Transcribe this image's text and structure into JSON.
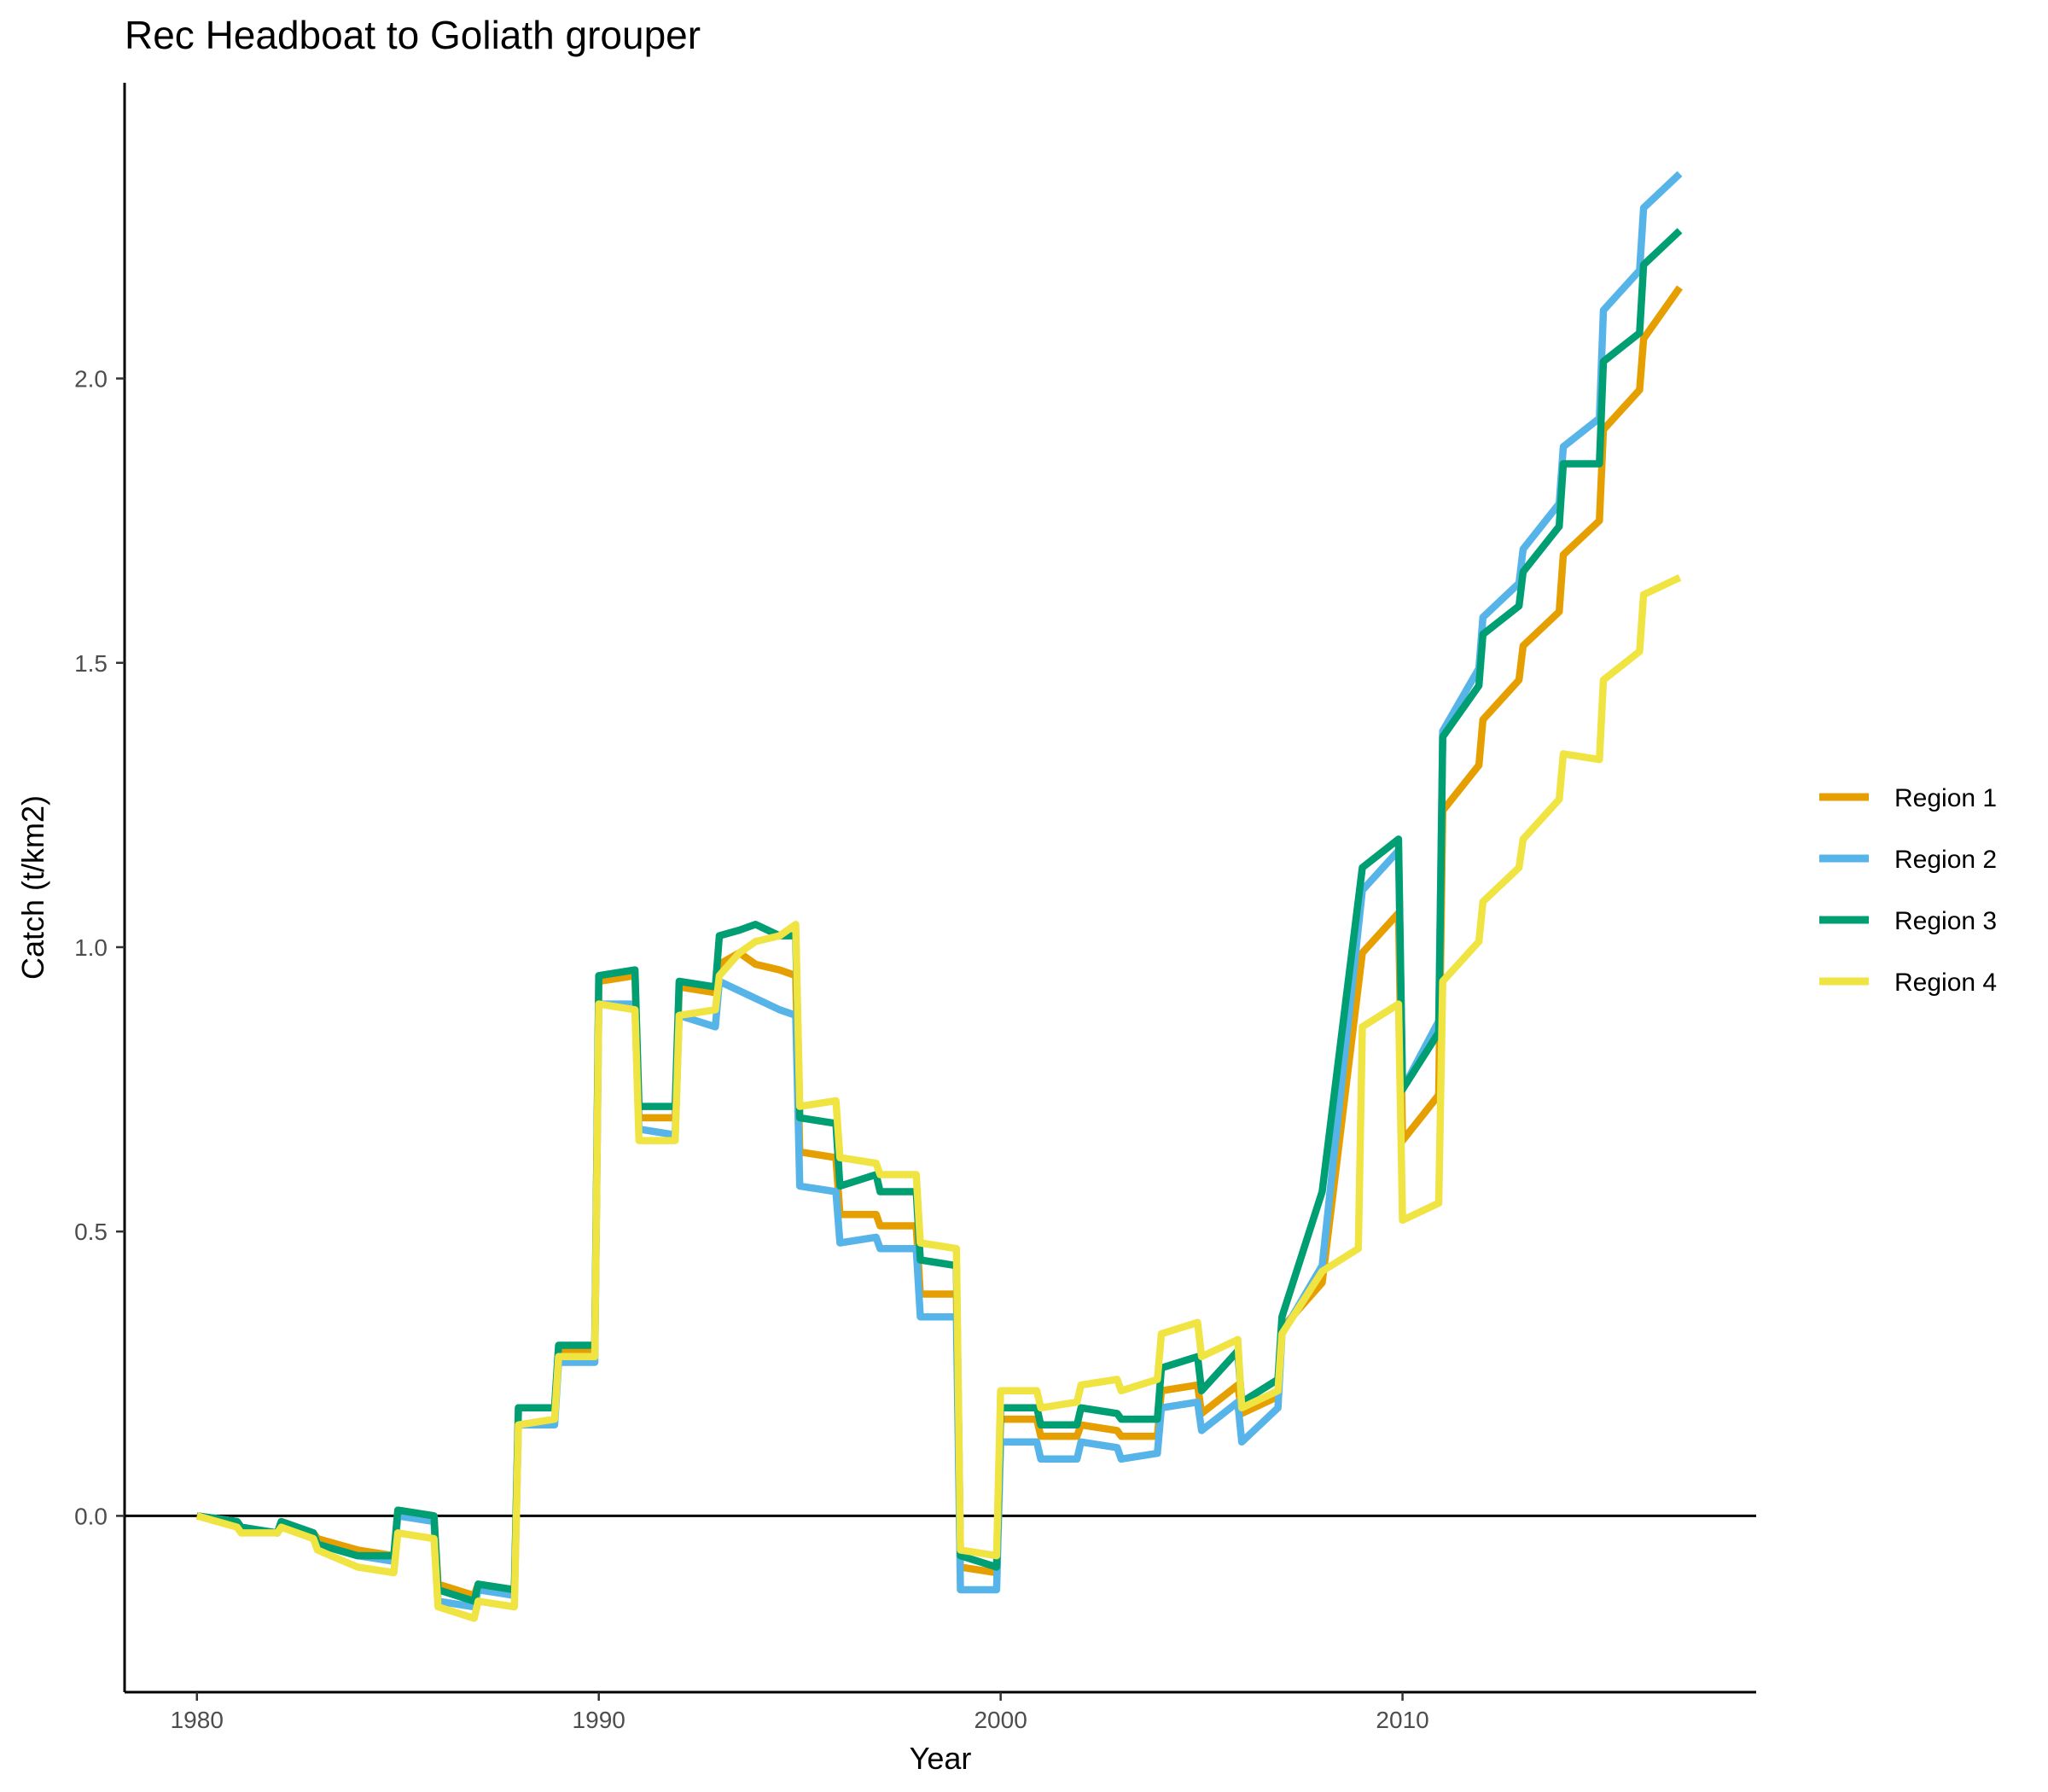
{
  "chart_data": {
    "type": "line",
    "title": "Rec Headboat to Goliath grouper",
    "xlabel": "Year",
    "ylabel": "Catch (t/km2)",
    "xlim": [
      1978.2,
      2018.8
    ],
    "ylim": [
      -0.31,
      2.52
    ],
    "xticks": [
      1980,
      1990,
      2000,
      2010
    ],
    "xtick_labels": [
      "1980",
      "1990",
      "2000",
      "2010"
    ],
    "yticks": [
      0.0,
      0.5,
      1.0,
      1.5,
      2.0
    ],
    "ytick_labels": [
      "0.0",
      "0.5",
      "1.0",
      "1.5",
      "2.0"
    ],
    "hline": 0,
    "grid": false,
    "legend_position": "right",
    "series": [
      {
        "name": "Region 1",
        "color": "#E69F00",
        "points": [
          [
            1980.0,
            0.0
          ],
          [
            1981.0,
            -0.01
          ],
          [
            1981.1,
            -0.02
          ],
          [
            1982.0,
            -0.03
          ],
          [
            1982.1,
            -0.01
          ],
          [
            1982.9,
            -0.03
          ],
          [
            1983.0,
            -0.04
          ],
          [
            1984.0,
            -0.06
          ],
          [
            1984.9,
            -0.07
          ],
          [
            1985.0,
            0.01
          ],
          [
            1985.9,
            0.0
          ],
          [
            1986.0,
            -0.12
          ],
          [
            1986.9,
            -0.14
          ],
          [
            1987.0,
            -0.12
          ],
          [
            1987.9,
            -0.13
          ],
          [
            1988.0,
            0.19
          ],
          [
            1988.9,
            0.19
          ],
          [
            1989.0,
            0.29
          ],
          [
            1989.9,
            0.29
          ],
          [
            1990.0,
            0.94
          ],
          [
            1990.9,
            0.95
          ],
          [
            1991.0,
            0.7
          ],
          [
            1991.9,
            0.7
          ],
          [
            1992.0,
            0.93
          ],
          [
            1992.9,
            0.92
          ],
          [
            1993.0,
            0.97
          ],
          [
            1993.5,
            0.99
          ],
          [
            1993.9,
            0.97
          ],
          [
            1994.5,
            0.96
          ],
          [
            1994.9,
            0.95
          ],
          [
            1995.0,
            0.64
          ],
          [
            1995.9,
            0.63
          ],
          [
            1996.0,
            0.53
          ],
          [
            1996.9,
            0.53
          ],
          [
            1997.0,
            0.51
          ],
          [
            1997.9,
            0.51
          ],
          [
            1998.0,
            0.39
          ],
          [
            1998.9,
            0.39
          ],
          [
            1999.0,
            -0.09
          ],
          [
            1999.9,
            -0.1
          ],
          [
            2000.0,
            0.17
          ],
          [
            2000.9,
            0.17
          ],
          [
            2001.0,
            0.14
          ],
          [
            2001.9,
            0.14
          ],
          [
            2002.0,
            0.16
          ],
          [
            2002.9,
            0.15
          ],
          [
            2003.0,
            0.14
          ],
          [
            2003.9,
            0.14
          ],
          [
            2004.0,
            0.22
          ],
          [
            2004.9,
            0.23
          ],
          [
            2005.0,
            0.18
          ],
          [
            2005.9,
            0.23
          ],
          [
            2006.0,
            0.18
          ],
          [
            2006.9,
            0.21
          ],
          [
            2007.0,
            0.33
          ],
          [
            2008.0,
            0.41
          ],
          [
            2009.0,
            0.99
          ],
          [
            2009.9,
            1.06
          ],
          [
            2010.0,
            0.66
          ],
          [
            2010.9,
            0.74
          ],
          [
            2011.0,
            1.24
          ],
          [
            2011.9,
            1.32
          ],
          [
            2012.0,
            1.4
          ],
          [
            2012.9,
            1.47
          ],
          [
            2013.0,
            1.53
          ],
          [
            2013.9,
            1.59
          ],
          [
            2014.0,
            1.69
          ],
          [
            2014.9,
            1.75
          ],
          [
            2015.0,
            1.91
          ],
          [
            2015.9,
            1.98
          ],
          [
            2016.0,
            2.07
          ],
          [
            2016.9,
            2.16
          ]
        ]
      },
      {
        "name": "Region 2",
        "color": "#56B4E9",
        "points": [
          [
            1980.0,
            0.0
          ],
          [
            1981.0,
            -0.01
          ],
          [
            1981.1,
            -0.02
          ],
          [
            1982.0,
            -0.03
          ],
          [
            1982.1,
            -0.01
          ],
          [
            1982.9,
            -0.03
          ],
          [
            1983.0,
            -0.05
          ],
          [
            1984.0,
            -0.07
          ],
          [
            1984.9,
            -0.08
          ],
          [
            1985.0,
            0.0
          ],
          [
            1985.9,
            -0.01
          ],
          [
            1986.0,
            -0.15
          ],
          [
            1986.9,
            -0.16
          ],
          [
            1987.0,
            -0.13
          ],
          [
            1987.9,
            -0.14
          ],
          [
            1988.0,
            0.16
          ],
          [
            1988.9,
            0.16
          ],
          [
            1989.0,
            0.27
          ],
          [
            1989.9,
            0.27
          ],
          [
            1990.0,
            0.9
          ],
          [
            1990.9,
            0.9
          ],
          [
            1991.0,
            0.68
          ],
          [
            1991.9,
            0.67
          ],
          [
            1992.0,
            0.88
          ],
          [
            1992.9,
            0.86
          ],
          [
            1993.0,
            0.94
          ],
          [
            1993.9,
            0.91
          ],
          [
            1994.5,
            0.89
          ],
          [
            1994.9,
            0.88
          ],
          [
            1995.0,
            0.58
          ],
          [
            1995.9,
            0.57
          ],
          [
            1996.0,
            0.48
          ],
          [
            1996.9,
            0.49
          ],
          [
            1997.0,
            0.47
          ],
          [
            1997.9,
            0.47
          ],
          [
            1998.0,
            0.35
          ],
          [
            1998.9,
            0.35
          ],
          [
            1999.0,
            -0.13
          ],
          [
            1999.9,
            -0.13
          ],
          [
            2000.0,
            0.13
          ],
          [
            2000.9,
            0.13
          ],
          [
            2001.0,
            0.1
          ],
          [
            2001.9,
            0.1
          ],
          [
            2002.0,
            0.13
          ],
          [
            2002.9,
            0.12
          ],
          [
            2003.0,
            0.1
          ],
          [
            2003.9,
            0.11
          ],
          [
            2004.0,
            0.19
          ],
          [
            2004.9,
            0.2
          ],
          [
            2005.0,
            0.15
          ],
          [
            2005.9,
            0.2
          ],
          [
            2006.0,
            0.13
          ],
          [
            2006.9,
            0.19
          ],
          [
            2007.0,
            0.32
          ],
          [
            2008.0,
            0.44
          ],
          [
            2009.0,
            1.1
          ],
          [
            2009.9,
            1.17
          ],
          [
            2010.0,
            0.75
          ],
          [
            2010.9,
            0.87
          ],
          [
            2011.0,
            1.38
          ],
          [
            2011.9,
            1.49
          ],
          [
            2012.0,
            1.58
          ],
          [
            2012.9,
            1.64
          ],
          [
            2013.0,
            1.7
          ],
          [
            2013.9,
            1.78
          ],
          [
            2014.0,
            1.88
          ],
          [
            2014.9,
            1.93
          ],
          [
            2015.0,
            2.12
          ],
          [
            2015.9,
            2.19
          ],
          [
            2016.0,
            2.3
          ],
          [
            2016.9,
            2.36
          ]
        ]
      },
      {
        "name": "Region 3",
        "color": "#009E73",
        "points": [
          [
            1980.0,
            0.0
          ],
          [
            1981.0,
            -0.01
          ],
          [
            1981.1,
            -0.02
          ],
          [
            1982.0,
            -0.03
          ],
          [
            1982.1,
            -0.01
          ],
          [
            1982.9,
            -0.03
          ],
          [
            1983.0,
            -0.05
          ],
          [
            1984.0,
            -0.07
          ],
          [
            1984.9,
            -0.07
          ],
          [
            1985.0,
            0.01
          ],
          [
            1985.9,
            0.0
          ],
          [
            1986.0,
            -0.13
          ],
          [
            1986.9,
            -0.15
          ],
          [
            1987.0,
            -0.12
          ],
          [
            1987.9,
            -0.13
          ],
          [
            1988.0,
            0.19
          ],
          [
            1988.9,
            0.19
          ],
          [
            1989.0,
            0.3
          ],
          [
            1989.9,
            0.3
          ],
          [
            1990.0,
            0.95
          ],
          [
            1990.9,
            0.96
          ],
          [
            1991.0,
            0.72
          ],
          [
            1991.9,
            0.72
          ],
          [
            1992.0,
            0.94
          ],
          [
            1992.9,
            0.93
          ],
          [
            1993.0,
            1.02
          ],
          [
            1993.5,
            1.03
          ],
          [
            1993.9,
            1.04
          ],
          [
            1994.5,
            1.02
          ],
          [
            1994.9,
            1.02
          ],
          [
            1995.0,
            0.7
          ],
          [
            1995.9,
            0.69
          ],
          [
            1996.0,
            0.58
          ],
          [
            1996.9,
            0.6
          ],
          [
            1997.0,
            0.57
          ],
          [
            1997.9,
            0.57
          ],
          [
            1998.0,
            0.45
          ],
          [
            1998.9,
            0.44
          ],
          [
            1999.0,
            -0.07
          ],
          [
            1999.9,
            -0.09
          ],
          [
            2000.0,
            0.19
          ],
          [
            2000.9,
            0.19
          ],
          [
            2001.0,
            0.16
          ],
          [
            2001.9,
            0.16
          ],
          [
            2002.0,
            0.19
          ],
          [
            2002.9,
            0.18
          ],
          [
            2003.0,
            0.17
          ],
          [
            2003.9,
            0.17
          ],
          [
            2004.0,
            0.26
          ],
          [
            2004.9,
            0.28
          ],
          [
            2005.0,
            0.22
          ],
          [
            2005.9,
            0.29
          ],
          [
            2006.0,
            0.2
          ],
          [
            2006.9,
            0.24
          ],
          [
            2007.0,
            0.35
          ],
          [
            2008.0,
            0.57
          ],
          [
            2009.0,
            1.14
          ],
          [
            2009.9,
            1.19
          ],
          [
            2010.0,
            0.75
          ],
          [
            2010.9,
            0.85
          ],
          [
            2011.0,
            1.37
          ],
          [
            2011.9,
            1.46
          ],
          [
            2012.0,
            1.55
          ],
          [
            2012.9,
            1.6
          ],
          [
            2013.0,
            1.66
          ],
          [
            2013.9,
            1.74
          ],
          [
            2014.0,
            1.85
          ],
          [
            2014.9,
            1.85
          ],
          [
            2015.0,
            2.03
          ],
          [
            2015.9,
            2.08
          ],
          [
            2016.0,
            2.2
          ],
          [
            2016.9,
            2.26
          ]
        ]
      },
      {
        "name": "Region 4",
        "color": "#F0E442",
        "points": [
          [
            1980.0,
            0.0
          ],
          [
            1981.0,
            -0.02
          ],
          [
            1981.1,
            -0.03
          ],
          [
            1982.0,
            -0.03
          ],
          [
            1982.1,
            -0.02
          ],
          [
            1982.9,
            -0.04
          ],
          [
            1983.0,
            -0.06
          ],
          [
            1984.0,
            -0.09
          ],
          [
            1984.9,
            -0.1
          ],
          [
            1985.0,
            -0.03
          ],
          [
            1985.9,
            -0.04
          ],
          [
            1986.0,
            -0.16
          ],
          [
            1986.9,
            -0.18
          ],
          [
            1987.0,
            -0.15
          ],
          [
            1987.9,
            -0.16
          ],
          [
            1988.0,
            0.16
          ],
          [
            1988.9,
            0.17
          ],
          [
            1989.0,
            0.28
          ],
          [
            1989.9,
            0.28
          ],
          [
            1990.0,
            0.9
          ],
          [
            1990.9,
            0.89
          ],
          [
            1991.0,
            0.66
          ],
          [
            1991.9,
            0.66
          ],
          [
            1992.0,
            0.88
          ],
          [
            1992.9,
            0.89
          ],
          [
            1993.0,
            0.95
          ],
          [
            1993.5,
            0.99
          ],
          [
            1993.9,
            1.01
          ],
          [
            1994.5,
            1.02
          ],
          [
            1994.9,
            1.04
          ],
          [
            1995.0,
            0.72
          ],
          [
            1995.9,
            0.73
          ],
          [
            1996.0,
            0.63
          ],
          [
            1996.9,
            0.62
          ],
          [
            1997.0,
            0.6
          ],
          [
            1997.9,
            0.6
          ],
          [
            1998.0,
            0.48
          ],
          [
            1998.9,
            0.47
          ],
          [
            1999.0,
            -0.06
          ],
          [
            1999.9,
            -0.07
          ],
          [
            2000.0,
            0.22
          ],
          [
            2000.9,
            0.22
          ],
          [
            2001.0,
            0.19
          ],
          [
            2001.9,
            0.2
          ],
          [
            2002.0,
            0.23
          ],
          [
            2002.9,
            0.24
          ],
          [
            2003.0,
            0.22
          ],
          [
            2003.9,
            0.24
          ],
          [
            2004.0,
            0.32
          ],
          [
            2004.9,
            0.34
          ],
          [
            2005.0,
            0.28
          ],
          [
            2005.9,
            0.31
          ],
          [
            2006.0,
            0.19
          ],
          [
            2006.9,
            0.22
          ],
          [
            2007.0,
            0.32
          ],
          [
            2008.0,
            0.43
          ],
          [
            2008.9,
            0.47
          ],
          [
            2009.0,
            0.86
          ],
          [
            2009.9,
            0.9
          ],
          [
            2010.0,
            0.52
          ],
          [
            2010.9,
            0.55
          ],
          [
            2011.0,
            0.94
          ],
          [
            2011.9,
            1.01
          ],
          [
            2012.0,
            1.08
          ],
          [
            2012.9,
            1.14
          ],
          [
            2013.0,
            1.19
          ],
          [
            2013.9,
            1.26
          ],
          [
            2014.0,
            1.34
          ],
          [
            2014.9,
            1.33
          ],
          [
            2015.0,
            1.47
          ],
          [
            2015.9,
            1.52
          ],
          [
            2016.0,
            1.62
          ],
          [
            2016.9,
            1.65
          ]
        ]
      }
    ]
  }
}
